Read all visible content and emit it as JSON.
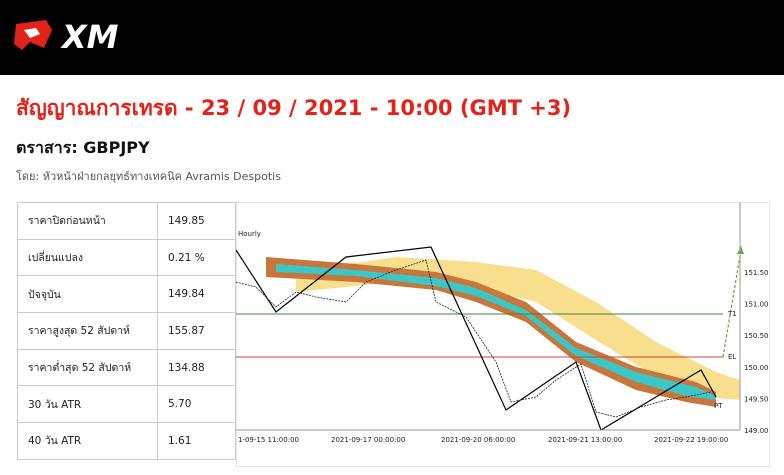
{
  "header": {
    "logo": "XM"
  },
  "title": "สัญญาณการเทรด - 23 / 09 / 2021 - 10:00 (GMT +3)",
  "instrument": "ตราสาร: GBPJPY",
  "author": "โดย: หัวหน้าฝ่ายกลยุทธ์ทางเทคนิค Avramis Despotis",
  "table": {
    "rows": [
      [
        "ราคาปิดก่อนหน้า",
        "149.85"
      ],
      [
        "เปลี่ยนแปลง",
        "0.21 %"
      ],
      [
        "ปัจจุบัน",
        "149.84"
      ],
      [
        "ราคาสูงสุด 52 สัปดาห์",
        "155.87"
      ],
      [
        "ราคาต่ำสุด 52 สัปดาห์",
        "134.88"
      ],
      [
        "30 วัน ATR",
        "5.70"
      ],
      [
        "40 วัน ATR",
        "1.61"
      ]
    ]
  },
  "chart": {
    "timeframe": "Hourly",
    "price_labels": [
      "151.50",
      "151.00",
      "150.50",
      "150.00",
      "149.50",
      "149.00"
    ],
    "time_labels": [
      "1-09-15 11:00:00",
      "2021-09-17 00:00:00",
      "2021-09-20 06:00:00",
      "2021-09-21 13:00:00",
      "2021-09-22 19:00:00"
    ],
    "level_labels": [
      "T1",
      "EL",
      "PT"
    ]
  }
}
